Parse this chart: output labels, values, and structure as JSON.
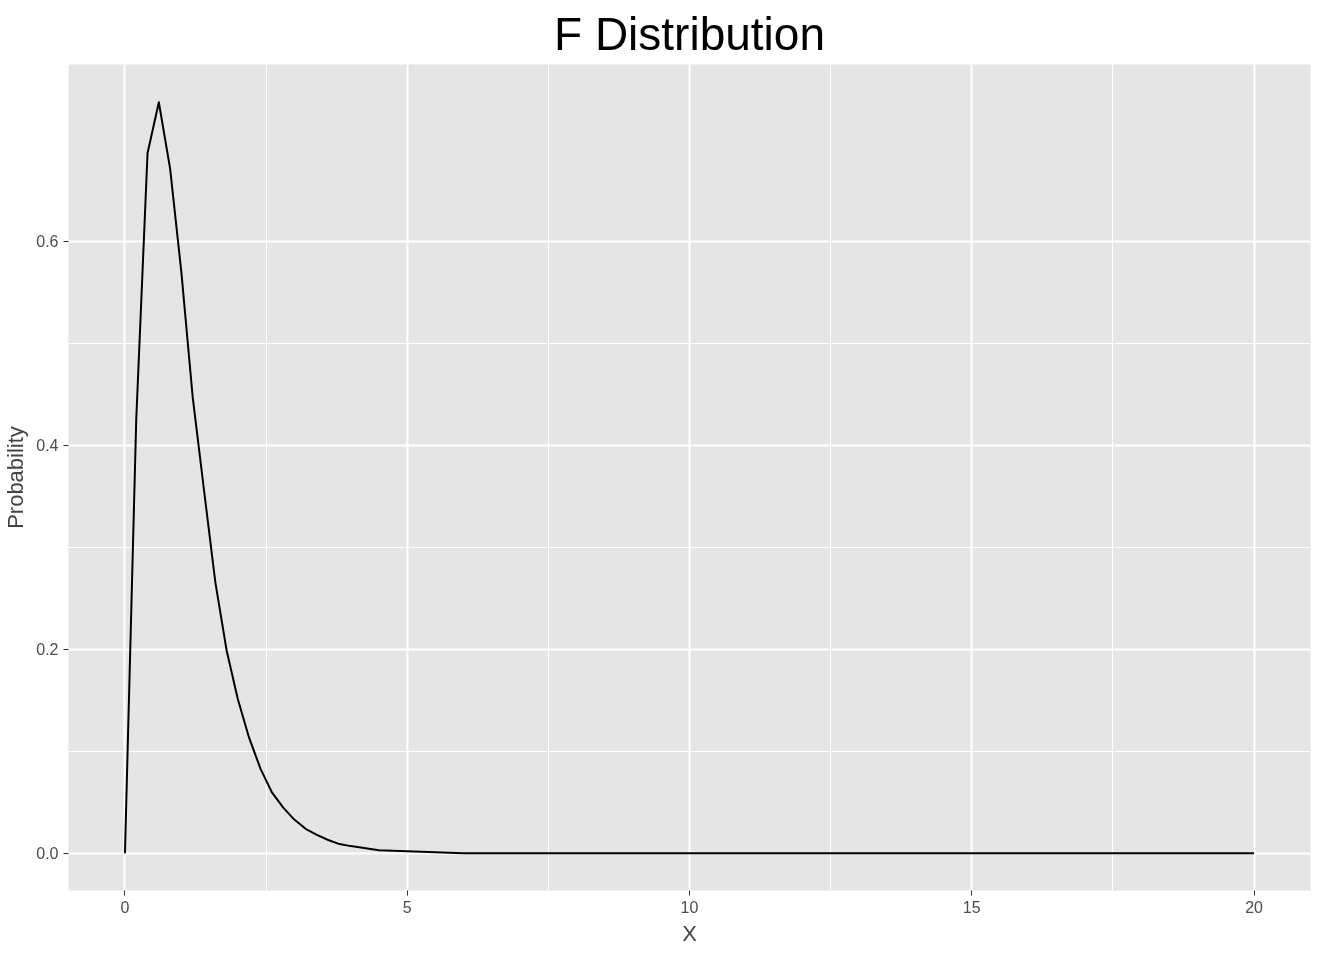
{
  "chart_data": {
    "type": "line",
    "title": "F Distribution",
    "xlabel": "X",
    "ylabel": "Probability",
    "x": [
      0,
      0.2,
      0.4,
      0.6,
      0.8,
      1.0,
      1.2,
      1.4,
      1.6,
      1.8,
      2.0,
      2.2,
      2.4,
      2.6,
      2.8,
      3.0,
      3.2,
      3.4,
      3.6,
      3.8,
      4.0,
      4.5,
      5.0,
      6.0,
      7.0,
      8.0,
      10.0,
      15.0,
      20.0
    ],
    "series": [
      {
        "color": "#000000",
        "values": [
          0,
          0.425,
          0.686,
          0.736,
          0.671,
          0.569,
          0.447,
          0.356,
          0.266,
          0.199,
          0.151,
          0.113,
          0.083,
          0.06,
          0.045,
          0.033,
          0.024,
          0.018,
          0.013,
          0.009,
          0.007,
          0.003,
          0.002,
          0,
          0,
          0,
          0,
          0,
          0
        ]
      }
    ],
    "xlim": [
      -1.0,
      21.0
    ],
    "ylim": [
      -0.0365,
      0.773
    ],
    "xticks": [
      0,
      5,
      10,
      15,
      20
    ],
    "yticks": [
      {
        "value": 0,
        "label": "0.0"
      },
      {
        "value": 0.2,
        "label": "0.2"
      },
      {
        "value": 0.4,
        "label": "0.4"
      },
      {
        "value": 0.6,
        "label": "0.6"
      }
    ],
    "grid": true,
    "marker": "none",
    "line_style": "solid"
  }
}
